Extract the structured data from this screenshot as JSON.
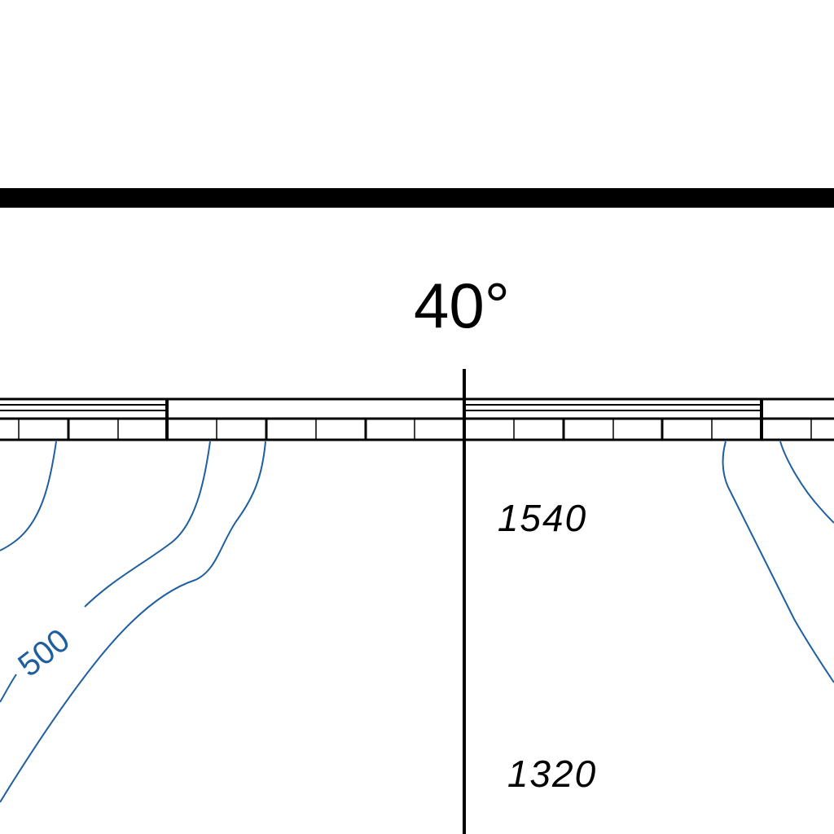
{
  "map": {
    "graticule_label": "40°",
    "contour_label": "500",
    "depth_soundings": [
      "1540",
      "1320"
    ],
    "colors": {
      "ink": "#000000",
      "contour": "#1f5f9f",
      "paper": "#ffffff"
    }
  }
}
